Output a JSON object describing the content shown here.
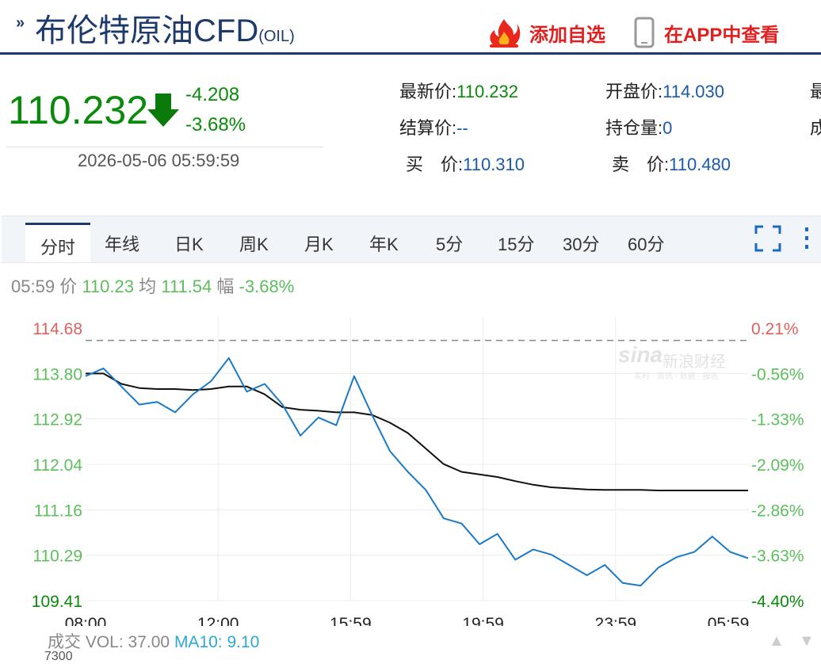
{
  "header": {
    "chevron": "»",
    "title": "布伦特原油CFD",
    "symbol": "(OIL)",
    "add_favorite": "添加自选",
    "view_in_app": "在APP中查看"
  },
  "quote": {
    "price": "110.232",
    "change": "-4.208",
    "change_pct": "-3.68%",
    "time": "2026-05-06 05:59:59",
    "fields": [
      {
        "label": "最新价:",
        "value": "110.232"
      },
      {
        "label": "开盘价:",
        "value": "114.030"
      },
      {
        "label": "最",
        "value": ""
      },
      {
        "label": "结算价:",
        "value": "--"
      },
      {
        "label": "持仓量:",
        "value": "0"
      },
      {
        "label": "成",
        "value": ""
      },
      {
        "label": "买　价:",
        "value": "110.310"
      },
      {
        "label": "卖　价:",
        "value": "110.480"
      }
    ]
  },
  "tabs": [
    "分时",
    "年线",
    "日K",
    "周K",
    "月K",
    "年K",
    "5分",
    "15分",
    "30分",
    "60分"
  ],
  "info_line": {
    "time": "05:59",
    "price_label": "价",
    "price": "110.23",
    "avg_label": "均",
    "avg": "111.54",
    "amp_label": "幅",
    "amp": "-3.68%"
  },
  "watermark": {
    "logo": "sina",
    "text": "新浪财经",
    "sub": "实时 · 资讯 · 数据 · 报告"
  },
  "volume": {
    "label": "成交",
    "vol": "VOL: 37.00",
    "ma": "MA10: 9.10",
    "axis_top": "7300"
  },
  "colors": {
    "up": "#e06060",
    "down": "#0a8a0a",
    "price_line": "#1a7ac8",
    "avg_line": "#111111",
    "brand": "#1d3a6b",
    "accent": "#e02020"
  },
  "chart_data": {
    "type": "line",
    "title": "",
    "x_tick_labels": [
      "08:00",
      "12:00",
      "15:59",
      "19:59",
      "23:59",
      "05:59"
    ],
    "y_tick_labels": [
      "114.68",
      "113.80",
      "112.92",
      "112.04",
      "111.16",
      "110.29",
      "109.41"
    ],
    "y2_tick_labels": [
      "0.21%",
      "-0.56%",
      "-1.33%",
      "-2.09%",
      "-2.86%",
      "-3.63%",
      "-4.40%"
    ],
    "ylim": [
      109.41,
      114.68
    ],
    "prev_close": 114.44,
    "x": [
      "05-05 08:00",
      "05-05 09:00",
      "05-05 10:00",
      "05-05 11:00",
      "05-05 12:00",
      "05-05 13:00",
      "05-05 14:00",
      "05-05 14:30",
      "05-05 15:00",
      "05-05 15:30",
      "05-05 15:59",
      "05-05 16:30",
      "05-05 17:00",
      "05-05 18:00",
      "05-05 19:00",
      "05-05 19:20",
      "05-05 19:40",
      "05-05 20:00",
      "05-05 20:30",
      "05-05 21:00",
      "05-05 21:30",
      "05-05 22:00",
      "05-05 22:30",
      "05-05 23:00",
      "05-05 23:30",
      "05-05 23:59",
      "05-06 00:30",
      "05-06 01:00",
      "05-06 01:30",
      "05-06 02:00",
      "05-06 02:30",
      "05-06 03:00",
      "05-06 03:30",
      "05-06 04:00",
      "05-06 04:30",
      "05-06 05:00",
      "05-06 05:30",
      "05-06 05:59"
    ],
    "series": [
      {
        "name": "价",
        "values": [
          113.75,
          113.9,
          113.55,
          113.2,
          113.25,
          113.05,
          113.4,
          113.65,
          114.1,
          113.45,
          113.6,
          113.2,
          112.6,
          112.95,
          112.8,
          113.75,
          113.0,
          112.3,
          111.9,
          111.55,
          111.0,
          110.9,
          110.5,
          110.7,
          110.2,
          110.4,
          110.3,
          110.1,
          109.9,
          110.1,
          109.75,
          109.7,
          110.05,
          110.25,
          110.35,
          110.65,
          110.35,
          110.23
        ]
      },
      {
        "name": "均",
        "values": [
          113.8,
          113.8,
          113.6,
          113.52,
          113.5,
          113.5,
          113.48,
          113.5,
          113.55,
          113.55,
          113.4,
          113.15,
          113.1,
          113.08,
          113.05,
          113.05,
          113.0,
          112.85,
          112.65,
          112.35,
          112.05,
          111.9,
          111.85,
          111.8,
          111.72,
          111.65,
          111.6,
          111.58,
          111.56,
          111.55,
          111.55,
          111.55,
          111.54,
          111.54,
          111.54,
          111.54,
          111.54,
          111.54
        ]
      }
    ],
    "grid": true
  }
}
